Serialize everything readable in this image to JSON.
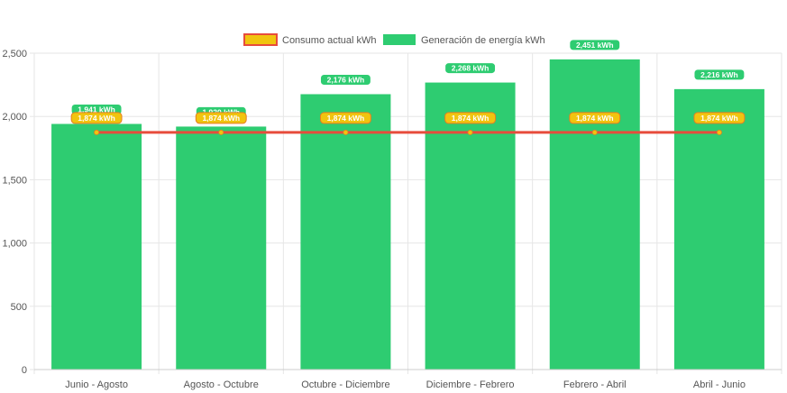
{
  "chart_data": {
    "type": "bar",
    "categories": [
      "Junio - Agosto",
      "Agosto - Octubre",
      "Octubre - Diciembre",
      "Diciembre - Febrero",
      "Febrero - Abril",
      "Abril - Junio"
    ],
    "series": [
      {
        "name": "Consumo actual kWh",
        "type": "line",
        "color": "#e74c3c",
        "point_color": "#f1c40f",
        "values": [
          1874,
          1874,
          1874,
          1874,
          1874,
          1874
        ],
        "labels": [
          "1,874 kWh",
          "1,874 kWh",
          "1,874 kWh",
          "1,874 kWh",
          "1,874 kWh",
          "1,874 kWh"
        ]
      },
      {
        "name": "Generación de energía kWh",
        "type": "bar",
        "color": "#2ecc71",
        "values": [
          1941,
          1920,
          2176,
          2268,
          2451,
          2216
        ],
        "labels": [
          "1,941 kWh",
          "1,920 kWh",
          "2,176 kWh",
          "2,268 kWh",
          "2,451 kWh",
          "2,216 kWh"
        ]
      }
    ],
    "ylim": [
      0,
      2500
    ],
    "yticks": [
      0,
      500,
      1000,
      1500,
      2000,
      2500
    ],
    "ytick_labels": [
      "0",
      "500",
      "1,000",
      "1,500",
      "2,000",
      "2,500"
    ],
    "grid": true,
    "legend_position": "top-center",
    "title": "",
    "xlabel": "",
    "ylabel": ""
  }
}
